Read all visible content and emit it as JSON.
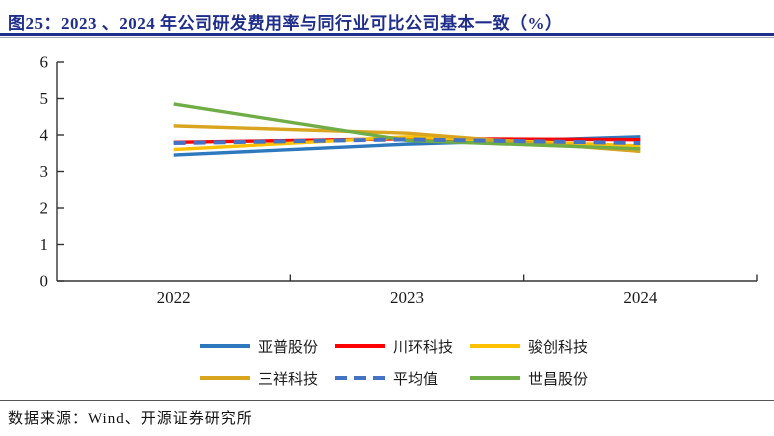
{
  "title": "图25：2023 、2024 年公司研发费用率与同行业可比公司基本一致（%）",
  "source": "数据来源：Wind、开源证券研究所",
  "colors": {
    "title_text": "#1F2D8C",
    "axis": "#333333",
    "tick_label": "#1a1a1a"
  },
  "chart_data": {
    "type": "line",
    "title": "",
    "xlabel": "",
    "ylabel": "",
    "categories": [
      "2022",
      "2023",
      "2024"
    ],
    "series": [
      {
        "id": "yapp",
        "name": "亚普股份",
        "color": "#2E79BD",
        "style": "solid",
        "values": [
          3.45,
          3.75,
          3.95
        ]
      },
      {
        "id": "chuanhuan",
        "name": "川环科技",
        "color": "#FF0000",
        "style": "solid",
        "values": [
          3.8,
          3.9,
          3.87
        ]
      },
      {
        "id": "junchuang",
        "name": "骏创科技",
        "color": "#FFC000",
        "style": "solid",
        "values": [
          3.6,
          3.95,
          3.7
        ]
      },
      {
        "id": "sanxiang",
        "name": "三祥科技",
        "color": "#D9A41E",
        "style": "solid",
        "values": [
          4.25,
          4.05,
          3.55
        ]
      },
      {
        "id": "average",
        "name": "平均值",
        "color": "#4472C4",
        "style": "dashed",
        "values": [
          3.78,
          3.88,
          3.78
        ]
      },
      {
        "id": "shichang",
        "name": "世昌股份",
        "color": "#70AD47",
        "style": "solid",
        "values": [
          4.85,
          3.85,
          3.62
        ]
      }
    ],
    "ylim": [
      0,
      6
    ],
    "ytick_step": 1,
    "grid": false,
    "legend_position": "bottom",
    "legend_rows": [
      [
        "yapp",
        "chuanhuan",
        "junchuang"
      ],
      [
        "sanxiang",
        "average",
        "shichang"
      ]
    ]
  }
}
